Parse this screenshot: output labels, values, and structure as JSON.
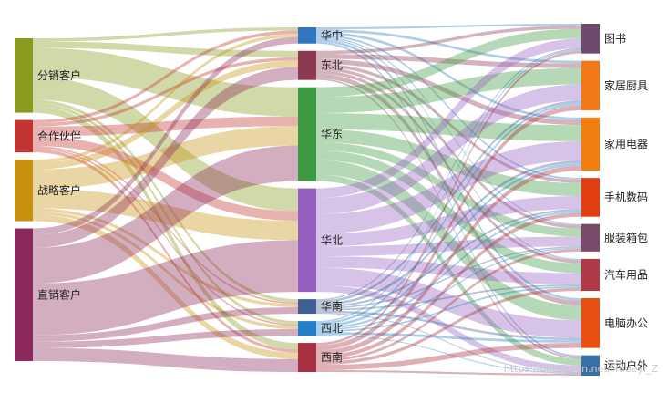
{
  "chart_data": {
    "type": "sankey",
    "title": "",
    "columns": [
      [
        "分销客户",
        "合作伙伴",
        "战略客户",
        "直销客户"
      ],
      [
        "华中",
        "东北",
        "华东",
        "华北",
        "华南",
        "西北",
        "西南"
      ],
      [
        "图书",
        "家居厨具",
        "家用电器",
        "手机数码",
        "服装箱包",
        "汽车用品",
        "电脑办公",
        "运动户外"
      ]
    ],
    "node_colors": {
      "分销客户": "#8a9a1e",
      "合作伙伴": "#c23531",
      "战略客户": "#c8900f",
      "直销客户": "#8b2a5a",
      "华中": "#2f78c0",
      "东北": "#8b3a50",
      "华东": "#3c9a40",
      "华北": "#9560c0",
      "华南": "#3f5f95",
      "西北": "#2080c8",
      "西南": "#a83040",
      "图书": "#6e4a6e",
      "家居厨具": "#f07818",
      "家用电器": "#f07f10",
      "手机数码": "#e04010",
      "服装箱包": "#7a4a6a",
      "汽车用品": "#b03a48",
      "电脑办公": "#e85010",
      "运动户外": "#3a70a8"
    },
    "links": [
      {
        "source": "分销客户",
        "target": "华中",
        "value": 1
      },
      {
        "source": "分销客户",
        "target": "东北",
        "value": 2
      },
      {
        "source": "分销客户",
        "target": "华东",
        "value": 9
      },
      {
        "source": "分销客户",
        "target": "华北",
        "value": 7
      },
      {
        "source": "分销客户",
        "target": "华南",
        "value": 1
      },
      {
        "source": "分销客户",
        "target": "西北",
        "value": 1
      },
      {
        "source": "分销客户",
        "target": "西南",
        "value": 2
      },
      {
        "source": "合作伙伴",
        "target": "华中",
        "value": 1
      },
      {
        "source": "合作伙伴",
        "target": "东北",
        "value": 1
      },
      {
        "source": "合作伙伴",
        "target": "华东",
        "value": 3
      },
      {
        "source": "合作伙伴",
        "target": "华北",
        "value": 3
      },
      {
        "source": "合作伙伴",
        "target": "华南",
        "value": 0.5
      },
      {
        "source": "合作伙伴",
        "target": "西北",
        "value": 0.5
      },
      {
        "source": "合作伙伴",
        "target": "西南",
        "value": 1
      },
      {
        "source": "战略客户",
        "target": "华中",
        "value": 1
      },
      {
        "source": "战略客户",
        "target": "东北",
        "value": 2
      },
      {
        "source": "战略客户",
        "target": "华东",
        "value": 6
      },
      {
        "source": "战略客户",
        "target": "华北",
        "value": 6
      },
      {
        "source": "战略客户",
        "target": "华南",
        "value": 1
      },
      {
        "source": "战略客户",
        "target": "西北",
        "value": 1
      },
      {
        "source": "战略客户",
        "target": "西南",
        "value": 2
      },
      {
        "source": "直销客户",
        "target": "华中",
        "value": 2
      },
      {
        "source": "直销客户",
        "target": "东北",
        "value": 4
      },
      {
        "source": "直销客户",
        "target": "华东",
        "value": 11
      },
      {
        "source": "直销客户",
        "target": "华北",
        "value": 16
      },
      {
        "source": "直销客户",
        "target": "华南",
        "value": 2
      },
      {
        "source": "直销客户",
        "target": "西北",
        "value": 2
      },
      {
        "source": "直销客户",
        "target": "西南",
        "value": 4
      },
      {
        "source": "华中",
        "target": "图书",
        "value": 0.6
      },
      {
        "source": "华中",
        "target": "家居厨具",
        "value": 0.8
      },
      {
        "source": "华中",
        "target": "家用电器",
        "value": 0.8
      },
      {
        "source": "华中",
        "target": "手机数码",
        "value": 0.6
      },
      {
        "source": "华中",
        "target": "服装箱包",
        "value": 0.4
      },
      {
        "source": "华中",
        "target": "汽车用品",
        "value": 0.4
      },
      {
        "source": "华中",
        "target": "电脑办公",
        "value": 0.8
      },
      {
        "source": "华中",
        "target": "运动户外",
        "value": 0.6
      },
      {
        "source": "东北",
        "target": "图书",
        "value": 1
      },
      {
        "source": "东北",
        "target": "家居厨具",
        "value": 1.5
      },
      {
        "source": "东北",
        "target": "家用电器",
        "value": 1.5
      },
      {
        "source": "东北",
        "target": "手机数码",
        "value": 1
      },
      {
        "source": "东北",
        "target": "服装箱包",
        "value": 1
      },
      {
        "source": "东北",
        "target": "汽车用品",
        "value": 1
      },
      {
        "source": "东北",
        "target": "电脑办公",
        "value": 1.5
      },
      {
        "source": "东北",
        "target": "运动户外",
        "value": 0.5
      },
      {
        "source": "华东",
        "target": "图书",
        "value": 3
      },
      {
        "source": "华东",
        "target": "家居厨具",
        "value": 5
      },
      {
        "source": "华东",
        "target": "家用电器",
        "value": 5
      },
      {
        "source": "华东",
        "target": "手机数码",
        "value": 4
      },
      {
        "source": "华东",
        "target": "服装箱包",
        "value": 2.5
      },
      {
        "source": "华东",
        "target": "汽车用品",
        "value": 3
      },
      {
        "source": "华东",
        "target": "电脑办公",
        "value": 4.5
      },
      {
        "source": "华东",
        "target": "运动户外",
        "value": 2
      },
      {
        "source": "华北",
        "target": "图书",
        "value": 3
      },
      {
        "source": "华北",
        "target": "家居厨具",
        "value": 5
      },
      {
        "source": "华北",
        "target": "家用电器",
        "value": 6
      },
      {
        "source": "华北",
        "target": "手机数码",
        "value": 4
      },
      {
        "source": "华北",
        "target": "服装箱包",
        "value": 3
      },
      {
        "source": "华北",
        "target": "汽车用品",
        "value": 3.5
      },
      {
        "source": "华北",
        "target": "电脑办公",
        "value": 5.5
      },
      {
        "source": "华北",
        "target": "运动户外",
        "value": 2
      },
      {
        "source": "华南",
        "target": "图书",
        "value": 0.4
      },
      {
        "source": "华南",
        "target": "家居厨具",
        "value": 0.8
      },
      {
        "source": "华南",
        "target": "家用电器",
        "value": 0.8
      },
      {
        "source": "华南",
        "target": "手机数码",
        "value": 0.6
      },
      {
        "source": "华南",
        "target": "服装箱包",
        "value": 0.4
      },
      {
        "source": "华南",
        "target": "汽车用品",
        "value": 0.5
      },
      {
        "source": "华南",
        "target": "电脑办公",
        "value": 0.7
      },
      {
        "source": "华南",
        "target": "运动户外",
        "value": 0.3
      },
      {
        "source": "西北",
        "target": "图书",
        "value": 0.4
      },
      {
        "source": "西北",
        "target": "家居厨具",
        "value": 0.7
      },
      {
        "source": "西北",
        "target": "家用电器",
        "value": 0.8
      },
      {
        "source": "西北",
        "target": "手机数码",
        "value": 0.6
      },
      {
        "source": "西北",
        "target": "服装箱包",
        "value": 0.4
      },
      {
        "source": "西北",
        "target": "汽车用品",
        "value": 0.5
      },
      {
        "source": "西北",
        "target": "电脑办公",
        "value": 0.8
      },
      {
        "source": "西北",
        "target": "运动户外",
        "value": 0.3
      },
      {
        "source": "西南",
        "target": "图书",
        "value": 0.8
      },
      {
        "source": "西南",
        "target": "家居厨具",
        "value": 1.5
      },
      {
        "source": "西南",
        "target": "家用电器",
        "value": 1.5
      },
      {
        "source": "西南",
        "target": "手机数码",
        "value": 1.2
      },
      {
        "source": "西南",
        "target": "服装箱包",
        "value": 0.8
      },
      {
        "source": "西南",
        "target": "汽车用品",
        "value": 1
      },
      {
        "source": "西南",
        "target": "电脑办公",
        "value": 1.6
      },
      {
        "source": "西南",
        "target": "运动户外",
        "value": 0.6
      }
    ]
  },
  "watermark": "https://blog.csdn.net/Hudeyi_Z"
}
